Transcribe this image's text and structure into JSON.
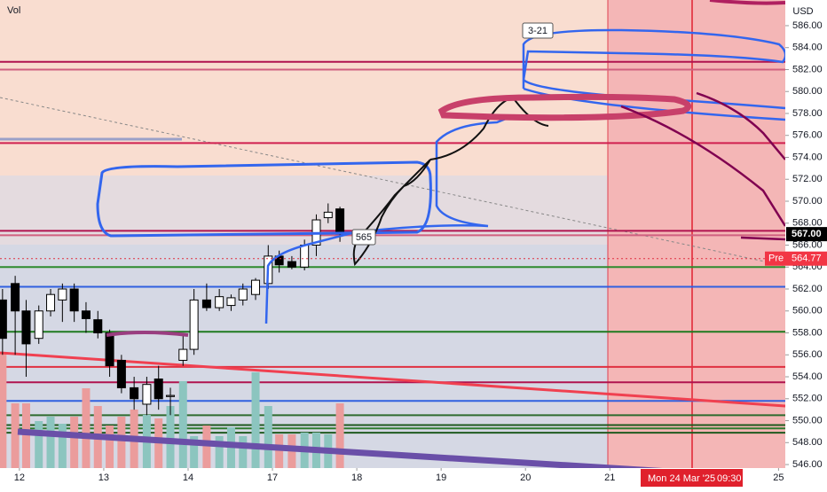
{
  "chart_data": {
    "type": "candlestick",
    "volume_label": "Vol",
    "currency": "USD",
    "x": [
      -0.2,
      -0.05,
      0.08,
      0.23,
      0.37,
      0.51,
      0.65,
      0.79,
      0.93,
      1.07,
      1.21,
      1.36,
      1.51,
      1.65,
      1.79,
      1.94,
      2.07,
      2.22,
      2.37,
      2.51,
      2.65,
      2.8,
      2.95,
      3.08,
      3.23,
      3.38,
      3.52,
      3.66,
      3.8
    ],
    "open": [
      561,
      562.5,
      560,
      557.5,
      560,
      561,
      562,
      560,
      559.2,
      558,
      555.5,
      553,
      551.5,
      553.8,
      552.2,
      555.5,
      556.5,
      561,
      560.3,
      560.5,
      561,
      561.5,
      562.5,
      565,
      564.5,
      564,
      566,
      568.5,
      569.3
    ],
    "high": [
      562,
      563.2,
      561,
      560.5,
      562,
      562.5,
      562.5,
      560.8,
      560,
      558.3,
      556,
      554,
      554,
      555,
      553,
      557.8,
      562,
      562.5,
      562,
      561.5,
      562.5,
      563,
      566,
      565.5,
      565,
      566.5,
      568.8,
      569.8,
      569.5
    ],
    "low": [
      556,
      556,
      554,
      557,
      559.5,
      559,
      559,
      558,
      557.5,
      554,
      552.5,
      551,
      550.5,
      551,
      550.5,
      555,
      556,
      560,
      560,
      560,
      560.5,
      561,
      562,
      563.5,
      563.8,
      563.7,
      565,
      568,
      566.3
    ],
    "close": [
      557.5,
      560,
      557,
      560,
      561.5,
      562,
      560,
      559.3,
      558,
      555,
      553,
      552,
      553.3,
      552,
      552.3,
      556.5,
      561,
      560.3,
      561.3,
      561.2,
      562,
      562.8,
      565,
      564.2,
      564,
      566,
      568.3,
      569,
      567
    ],
    "volume": [
      130,
      73,
      73,
      53,
      58,
      50,
      58,
      90,
      70,
      48,
      58,
      66,
      60,
      56,
      70,
      98,
      36,
      48,
      36,
      46,
      36,
      108,
      70,
      38,
      38,
      40,
      40,
      38,
      73
    ],
    "vlim": [
      0,
      200
    ],
    "up_color": "#ffffff",
    "down_color": "#000000",
    "vol_up_color": "#8cc5bf",
    "vol_down_color": "#eb9c9c",
    "xlim": [
      -0.23,
      9.08
    ],
    "xticks": [
      {
        "value": 0,
        "label": "12"
      },
      {
        "value": 1,
        "label": "13"
      },
      {
        "value": 2,
        "label": "14"
      },
      {
        "value": 3,
        "label": "17"
      },
      {
        "value": 4,
        "label": "18"
      },
      {
        "value": 5,
        "label": "19"
      },
      {
        "value": 6,
        "label": "20"
      },
      {
        "value": 7,
        "label": "21"
      },
      {
        "value": 9,
        "label": "25"
      }
    ],
    "ylim": [
      545.68,
      588.34
    ],
    "yticks": [
      {
        "value": 546,
        "label": "546.00"
      },
      {
        "value": 548,
        "label": "548.00"
      },
      {
        "value": 550,
        "label": "550.00"
      },
      {
        "value": 552,
        "label": "552.00"
      },
      {
        "value": 554,
        "label": "554.00"
      },
      {
        "value": 556,
        "label": "556.00"
      },
      {
        "value": 558,
        "label": "558.00"
      },
      {
        "value": 560,
        "label": "560.00"
      },
      {
        "value": 562,
        "label": "562.00"
      },
      {
        "value": 564,
        "label": "564.00"
      },
      {
        "value": 566,
        "label": "566.00"
      },
      {
        "value": 568,
        "label": "568.00"
      },
      {
        "value": 570,
        "label": "570.00"
      },
      {
        "value": 572,
        "label": "572.00"
      },
      {
        "value": 574,
        "label": "574.00"
      },
      {
        "value": 576,
        "label": "576.00"
      },
      {
        "value": 578,
        "label": "578.00"
      },
      {
        "value": 580,
        "label": "580.00"
      },
      {
        "value": 582,
        "label": "582.00"
      },
      {
        "value": 584,
        "label": "584.00"
      },
      {
        "value": 586,
        "label": "586.00"
      }
    ],
    "hlines": [
      {
        "value": 582.7,
        "color": "#b0134f"
      },
      {
        "value": 582.0,
        "color": "#d0607f"
      },
      {
        "value": 575.3,
        "color": "#d0204f"
      },
      {
        "value": 567.3,
        "color": "#b0134f"
      },
      {
        "value": 566.9,
        "color": "#d0607f"
      },
      {
        "value": 564.0,
        "color": "#2e8b2e"
      },
      {
        "value": 562.2,
        "color": "#3060e0"
      },
      {
        "value": 558.1,
        "color": "#1f7a1f"
      },
      {
        "value": 554.9,
        "color": "#e03040"
      },
      {
        "value": 553.5,
        "color": "#b0134f"
      },
      {
        "value": 551.8,
        "color": "#3060e0"
      },
      {
        "value": 550.5,
        "color": "#2e6b2e"
      },
      {
        "value": 549.6,
        "color": "#1f5a1f"
      },
      {
        "value": 549.3,
        "color": "#2e7b2e"
      },
      {
        "value": 548.9,
        "color": "#1f5a1f"
      }
    ],
    "last_price": {
      "value": 567.0,
      "label": "567.00"
    },
    "pre_label": "Pre",
    "pre_price": {
      "value": 564.77,
      "label": "564.77"
    },
    "annotation_565": "565",
    "annotation_321": "3-21",
    "cursor_date": "Mon 24 Mar '25",
    "cursor_time": "09:30"
  }
}
